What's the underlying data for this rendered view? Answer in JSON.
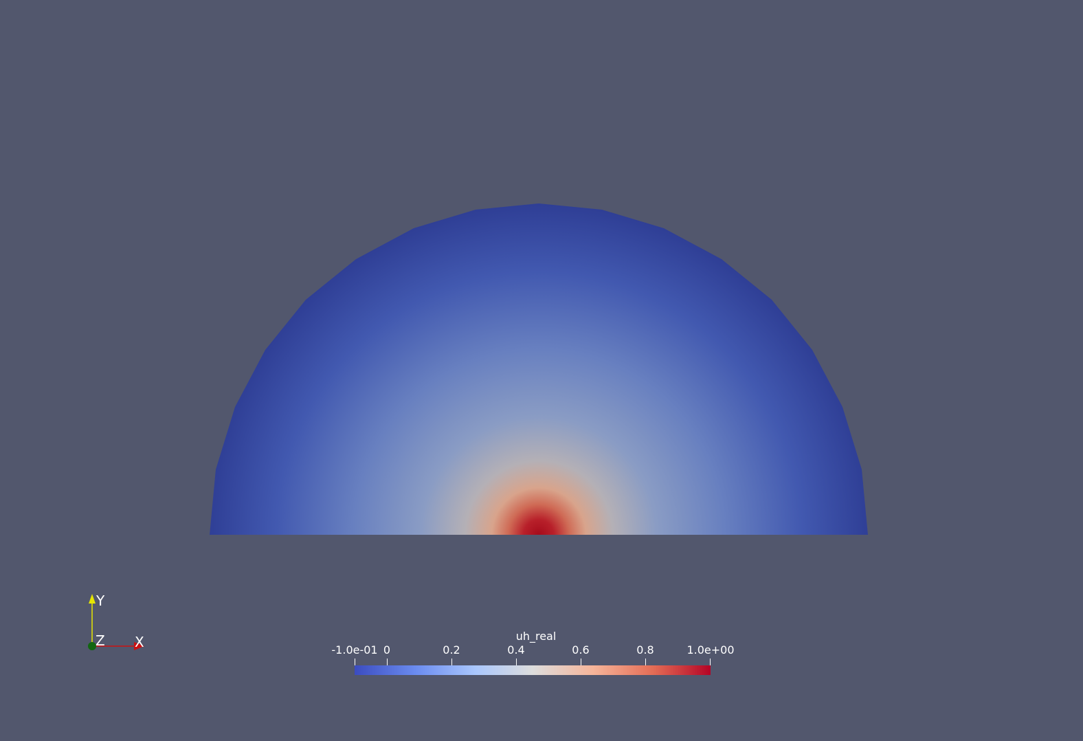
{
  "scalar_bar": {
    "title": "uh_real",
    "ticks": [
      {
        "label": "-1.0e-01",
        "value": -0.1
      },
      {
        "label": "0",
        "value": 0
      },
      {
        "label": "0.2",
        "value": 0.2
      },
      {
        "label": "0.4",
        "value": 0.4
      },
      {
        "label": "0.6",
        "value": 0.6
      },
      {
        "label": "0.8",
        "value": 0.8
      },
      {
        "label": "1.0e+00",
        "value": 1.0
      }
    ],
    "range": [
      -0.1,
      1.0
    ],
    "colormap": [
      "#3b4cc0",
      "#6a8bef",
      "#aac7fd",
      "#dddddd",
      "#f6b59a",
      "#e36c55",
      "#b40426"
    ]
  },
  "orientation_axes": {
    "x_label": "X",
    "y_label": "Y",
    "z_label": "Z",
    "x_color": "#cc1111",
    "y_color": "#e6e600",
    "z_color": "#116611"
  },
  "colors": {
    "background": "#52576d",
    "field_low": "#2f3d94",
    "field_mid": "#8fa0c0",
    "field_high": "#a50b1b"
  }
}
